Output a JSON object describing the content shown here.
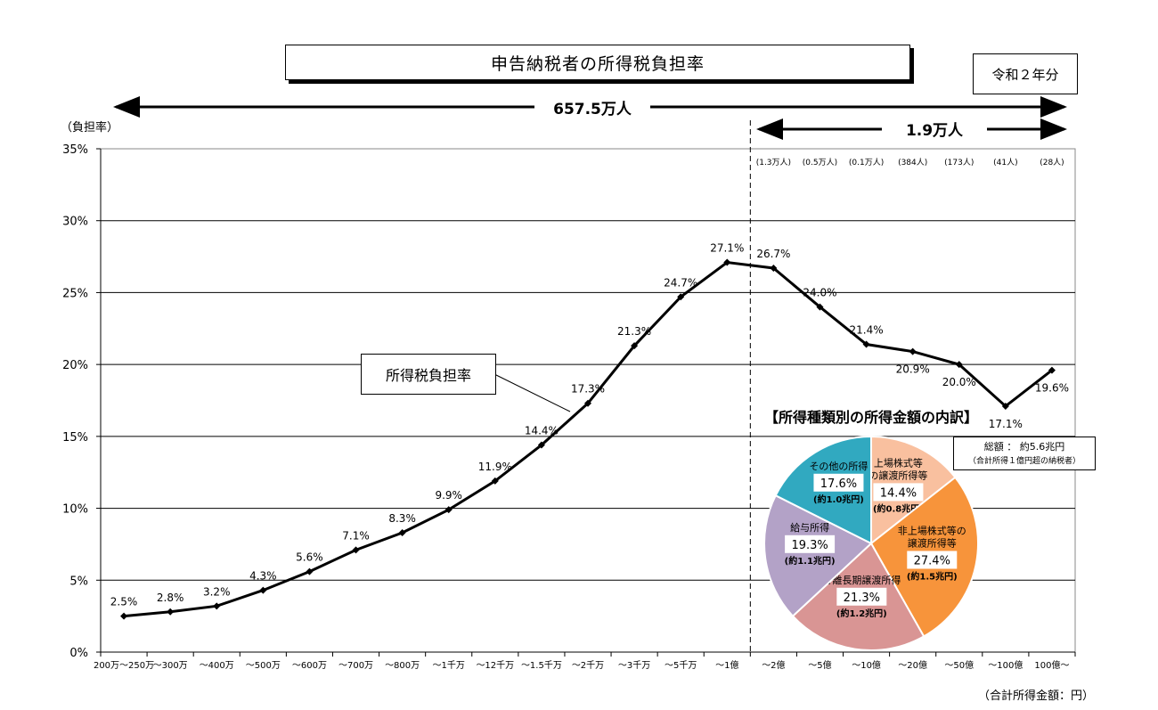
{
  "title": "申告納税者の所得税負担率",
  "year_label": "令和２年分",
  "total_people": "657.5万人",
  "top_people": "1.9万人",
  "ylabel": "（負担率）",
  "xlabel": "（合計所得金額：円）",
  "series_label": "所得税負担率",
  "pie_title": "【所得種類別の所得金額の内訳】",
  "pie_total_line1": "総額 ： 約5.6兆円",
  "pie_total_line2": "（合計所得１億円超の納税者）",
  "top_counts": [
    "(1.3万人)",
    "(0.5万人)",
    "(0.1万人)",
    "(384人)",
    "(173人)",
    "(41人)",
    "(28人)"
  ],
  "chart_data": {
    "type": "line",
    "categories": [
      "200万～250万",
      "～300万",
      "～400万",
      "～500万",
      "～600万",
      "～700万",
      "～800万",
      "～1千万",
      "～12千万",
      "～1.5千万",
      "～2千万",
      "～3千万",
      "～5千万",
      "～1億",
      "～2億",
      "～5億",
      "～10億",
      "～20億",
      "～50億",
      "～100億",
      "100億～"
    ],
    "series": [
      {
        "name": "所得税負担率",
        "values": [
          2.5,
          2.8,
          3.2,
          4.3,
          5.6,
          7.1,
          8.3,
          9.9,
          11.9,
          14.4,
          17.3,
          21.3,
          24.7,
          27.1,
          26.7,
          24.0,
          21.4,
          20.9,
          20.0,
          17.1,
          19.6
        ],
        "labels": [
          "2.5%",
          "2.8%",
          "3.2%",
          "4.3%",
          "5.6%",
          "7.1%",
          "8.3%",
          "9.9%",
          "11.9%",
          "14.4%",
          "17.3%",
          "21.3%",
          "24.7%",
          "27.1%",
          "26.7%",
          "24.0%",
          "21.4%",
          "20.9%",
          "20.0%",
          "17.1%",
          "19.6%"
        ]
      }
    ],
    "ylim": [
      0,
      35
    ],
    "yticks": [
      "0%",
      "5%",
      "10%",
      "15%",
      "20%",
      "25%",
      "30%",
      "35%"
    ],
    "grid": true
  },
  "pie_data": {
    "type": "pie",
    "slices": [
      {
        "name1": "上場株式等",
        "name2": "の譲渡所得等",
        "pct": "14.4%",
        "amount": "(約0.8兆円)",
        "value": 14.4,
        "color": "#f9c09f"
      },
      {
        "name1": "非上場株式等の",
        "name2": "譲渡所得等",
        "pct": "27.4%",
        "amount": "(約1.5兆円)",
        "value": 27.4,
        "color": "#f7943b"
      },
      {
        "name1": "分離長期譲渡所得",
        "name2": "",
        "pct": "21.3%",
        "amount": "(約1.2兆円)",
        "value": 21.3,
        "color": "#d99594"
      },
      {
        "name1": "給与所得",
        "name2": "",
        "pct": "19.3%",
        "amount": "(約1.1兆円)",
        "value": 19.3,
        "color": "#b3a2c7"
      },
      {
        "name1": "その他の所得",
        "name2": "",
        "pct": "17.6%",
        "amount": "(約1.0兆円)",
        "value": 17.6,
        "color": "#31a9c0"
      }
    ]
  }
}
